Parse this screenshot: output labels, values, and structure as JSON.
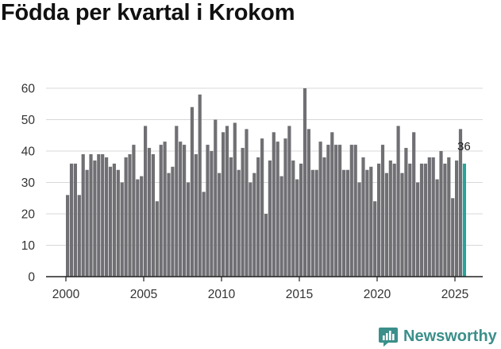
{
  "chart_data": {
    "type": "bar",
    "title": "Födda per kvartal i Krokom",
    "xlabel": "",
    "ylabel": "",
    "ylim": [
      0,
      60
    ],
    "y_ticks": [
      0,
      10,
      20,
      30,
      40,
      50,
      60
    ],
    "x_ticks": [
      2000,
      2005,
      2010,
      2015,
      2020,
      2025
    ],
    "x_start": 2000,
    "period": "quarter",
    "values": [
      26,
      36,
      36,
      26,
      39,
      34,
      39,
      37,
      39,
      39,
      38,
      35,
      36,
      34,
      30,
      38,
      39,
      42,
      31,
      32,
      48,
      41,
      39,
      24,
      42,
      43,
      33,
      35,
      48,
      43,
      42,
      30,
      54,
      39,
      58,
      27,
      42,
      40,
      50,
      33,
      46,
      48,
      38,
      49,
      34,
      41,
      47,
      30,
      33,
      38,
      44,
      20,
      37,
      46,
      43,
      32,
      44,
      48,
      37,
      31,
      36,
      60,
      47,
      34,
      34,
      43,
      38,
      42,
      46,
      42,
      42,
      34,
      34,
      42,
      42,
      30,
      38,
      34,
      35,
      24,
      36,
      42,
      33,
      37,
      36,
      48,
      33,
      41,
      36,
      46,
      30,
      36,
      36,
      38,
      38,
      31,
      40,
      36,
      38,
      25,
      37,
      47,
      36
    ],
    "highlight_last": true,
    "last_label": "36",
    "colors": {
      "bar": "#707074",
      "highlight": "#27a39a",
      "grid": "#d8d8d8",
      "axis": "#222222"
    }
  },
  "brand": {
    "name": "Newsworthy",
    "icon": "newsworthy-logo-icon",
    "color": "#3b8f8a"
  }
}
